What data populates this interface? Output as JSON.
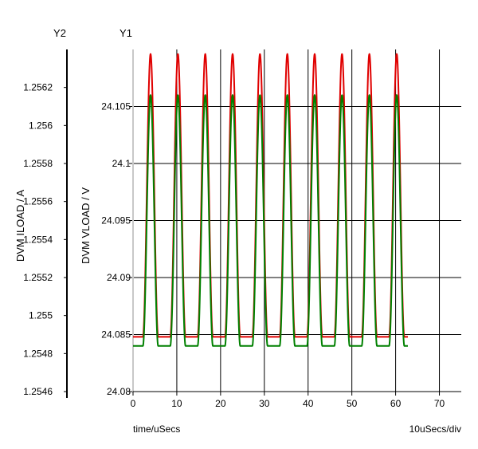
{
  "chart_data": {
    "type": "line",
    "y2_header": "Y2",
    "y1_header": "Y1",
    "y2label": "DVM ILOAD / A",
    "y1label": "DVM VLOAD / V",
    "xlabel": "time/uSecs",
    "scale_note": "10uSecs/div",
    "xlim": [
      0,
      75
    ],
    "x_ticks": [
      "0",
      "10",
      "20",
      "30",
      "40",
      "50",
      "60",
      "70"
    ],
    "y1lim": [
      24.08,
      24.11
    ],
    "y1_ticks": [
      "24.08",
      "24.085",
      "24.09",
      "24.095",
      "24.1",
      "24.105"
    ],
    "y2lim": [
      1.2546,
      1.2564
    ],
    "y2_ticks": [
      "1.2546",
      "1.2548",
      "1.255",
      "1.2552",
      "1.2554",
      "1.2556",
      "1.2558",
      "1.256",
      "1.2562"
    ],
    "grid": true,
    "series": [
      {
        "axis": "y1",
        "color": "#e00000",
        "x_start": 0,
        "x_end": 62.8,
        "period": 6.25,
        "first_peak_x": 4.0,
        "min": 24.0848,
        "max": 24.1096
      },
      {
        "axis": "y2",
        "color": "#008000",
        "x_start": 0,
        "x_end": 62.8,
        "period": 6.25,
        "first_peak_x": 4.0,
        "min": 1.25484,
        "max": 1.25616
      }
    ]
  }
}
